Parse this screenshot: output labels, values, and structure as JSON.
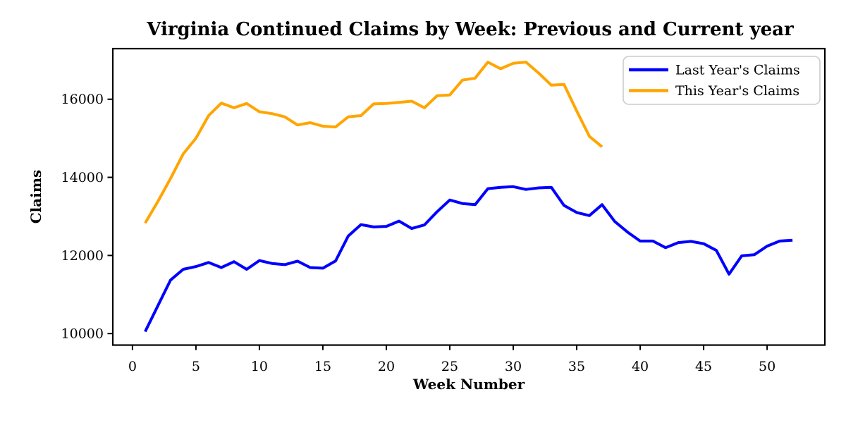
{
  "chart_data": {
    "type": "line",
    "title": "Virginia Continued Claims by Week: Previous and Current year",
    "xlabel": "Week Number",
    "ylabel": "Claims",
    "x_ticks": [
      0,
      5,
      10,
      15,
      20,
      25,
      30,
      35,
      40,
      45,
      50
    ],
    "y_ticks": [
      10000,
      12000,
      14000,
      16000
    ],
    "xlim": [
      -1.55,
      54.55
    ],
    "ylim": [
      9705,
      17295
    ],
    "grid": false,
    "legend_position": "upper right",
    "series": [
      {
        "name": "Last Year's Claims",
        "color": "#0000ff",
        "x": [
          1,
          2,
          3,
          4,
          5,
          6,
          7,
          8,
          9,
          10,
          11,
          12,
          13,
          14,
          15,
          16,
          17,
          18,
          19,
          20,
          21,
          22,
          23,
          24,
          25,
          26,
          27,
          28,
          29,
          30,
          31,
          32,
          33,
          34,
          35,
          36,
          37,
          38,
          39,
          40,
          41,
          42,
          43,
          44,
          45,
          46,
          47,
          48,
          49,
          50,
          51,
          52
        ],
        "values": [
          10050,
          10710,
          11370,
          11645,
          11715,
          11820,
          11690,
          11840,
          11645,
          11870,
          11795,
          11765,
          11855,
          11690,
          11675,
          11860,
          12500,
          12790,
          12730,
          12745,
          12880,
          12690,
          12780,
          13120,
          13420,
          13330,
          13300,
          13710,
          13745,
          13760,
          13690,
          13730,
          13745,
          13280,
          13100,
          13020,
          13300,
          12870,
          12600,
          12370,
          12370,
          12200,
          12330,
          12360,
          12300,
          12130,
          11520,
          11990,
          12020,
          12240,
          12370,
          12390
        ]
      },
      {
        "name": "This Year's Claims",
        "color": "#ffa500",
        "x": [
          1,
          2,
          3,
          4,
          5,
          6,
          7,
          8,
          9,
          10,
          11,
          12,
          13,
          14,
          15,
          16,
          17,
          18,
          19,
          20,
          21,
          22,
          23,
          24,
          25,
          26,
          27,
          28,
          29,
          30,
          31,
          32,
          33,
          34,
          35,
          36,
          37
        ],
        "values": [
          12830,
          13380,
          13970,
          14600,
          15000,
          15580,
          15900,
          15780,
          15890,
          15680,
          15630,
          15550,
          15340,
          15400,
          15310,
          15290,
          15550,
          15580,
          15880,
          15890,
          15920,
          15950,
          15780,
          16090,
          16110,
          16490,
          16540,
          16950,
          16780,
          16920,
          16950,
          16670,
          16360,
          16380,
          15700,
          15050,
          14780
        ]
      }
    ]
  }
}
